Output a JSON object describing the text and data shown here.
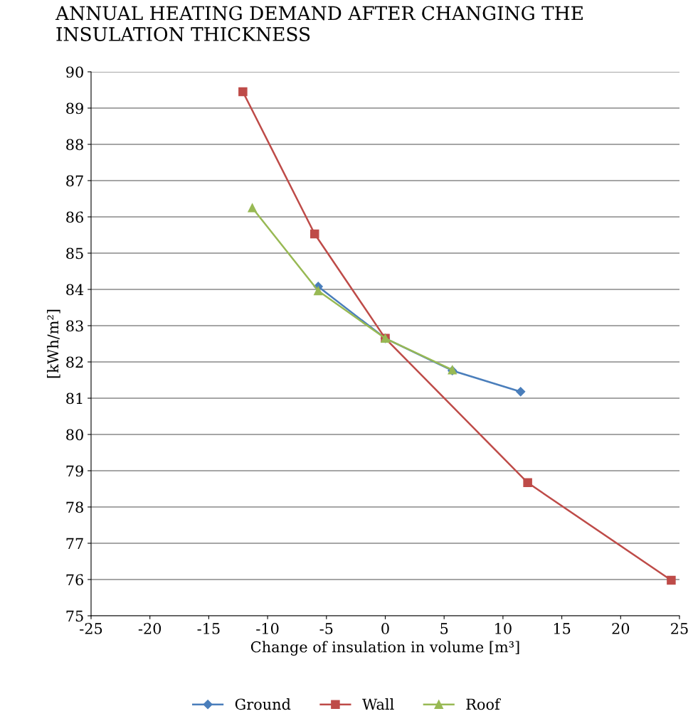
{
  "chart_data": {
    "type": "line",
    "title": "ANNUAL HEATING DEMAND AFTER CHANGING THE INSULATION THICKNESS",
    "xlabel": "Change of insulation in volume [m³]",
    "ylabel": "[kWh/m²]",
    "series": [
      {
        "name": "Ground",
        "color": "#4a7ebb",
        "marker": "diamond",
        "x": [
          -5.7,
          0,
          5.7,
          11.5
        ],
        "values": [
          84.08,
          82.65,
          81.76,
          81.18
        ]
      },
      {
        "name": "Wall",
        "color": "#be4b48",
        "marker": "square",
        "x": [
          -12.1,
          -6.0,
          0,
          12.1,
          24.3
        ],
        "values": [
          89.45,
          85.53,
          82.65,
          78.67,
          75.98
        ]
      },
      {
        "name": "Roof",
        "color": "#98b954",
        "marker": "triangle",
        "x": [
          -11.3,
          -5.7,
          0,
          5.7
        ],
        "values": [
          86.25,
          83.96,
          82.65,
          81.78
        ]
      }
    ],
    "xlim": [
      -25,
      25
    ],
    "xticks": [
      -25,
      -20,
      -15,
      -10,
      -5,
      0,
      5,
      10,
      15,
      20,
      25
    ],
    "ylim": [
      75,
      90
    ],
    "yticks": [
      75,
      76,
      77,
      78,
      79,
      80,
      81,
      82,
      83,
      84,
      85,
      86,
      87,
      88,
      89,
      90
    ],
    "grid": "y",
    "legend": "bottom",
    "line_style": "solid"
  }
}
